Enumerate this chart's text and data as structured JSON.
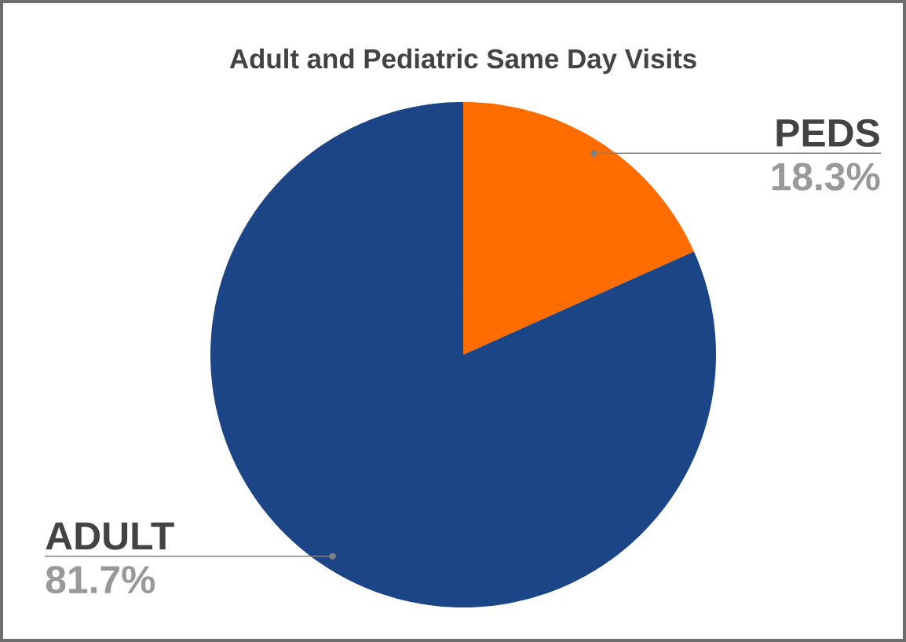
{
  "chart_data": {
    "type": "pie",
    "title": "Adult and Pediatric Same Day Visits",
    "categories": [
      "PEDS",
      "ADULT"
    ],
    "values": [
      18.3,
      81.7
    ],
    "colors": [
      "#ff6d01",
      "#1c4587"
    ],
    "value_labels": [
      "18.3%",
      "81.7%"
    ]
  }
}
